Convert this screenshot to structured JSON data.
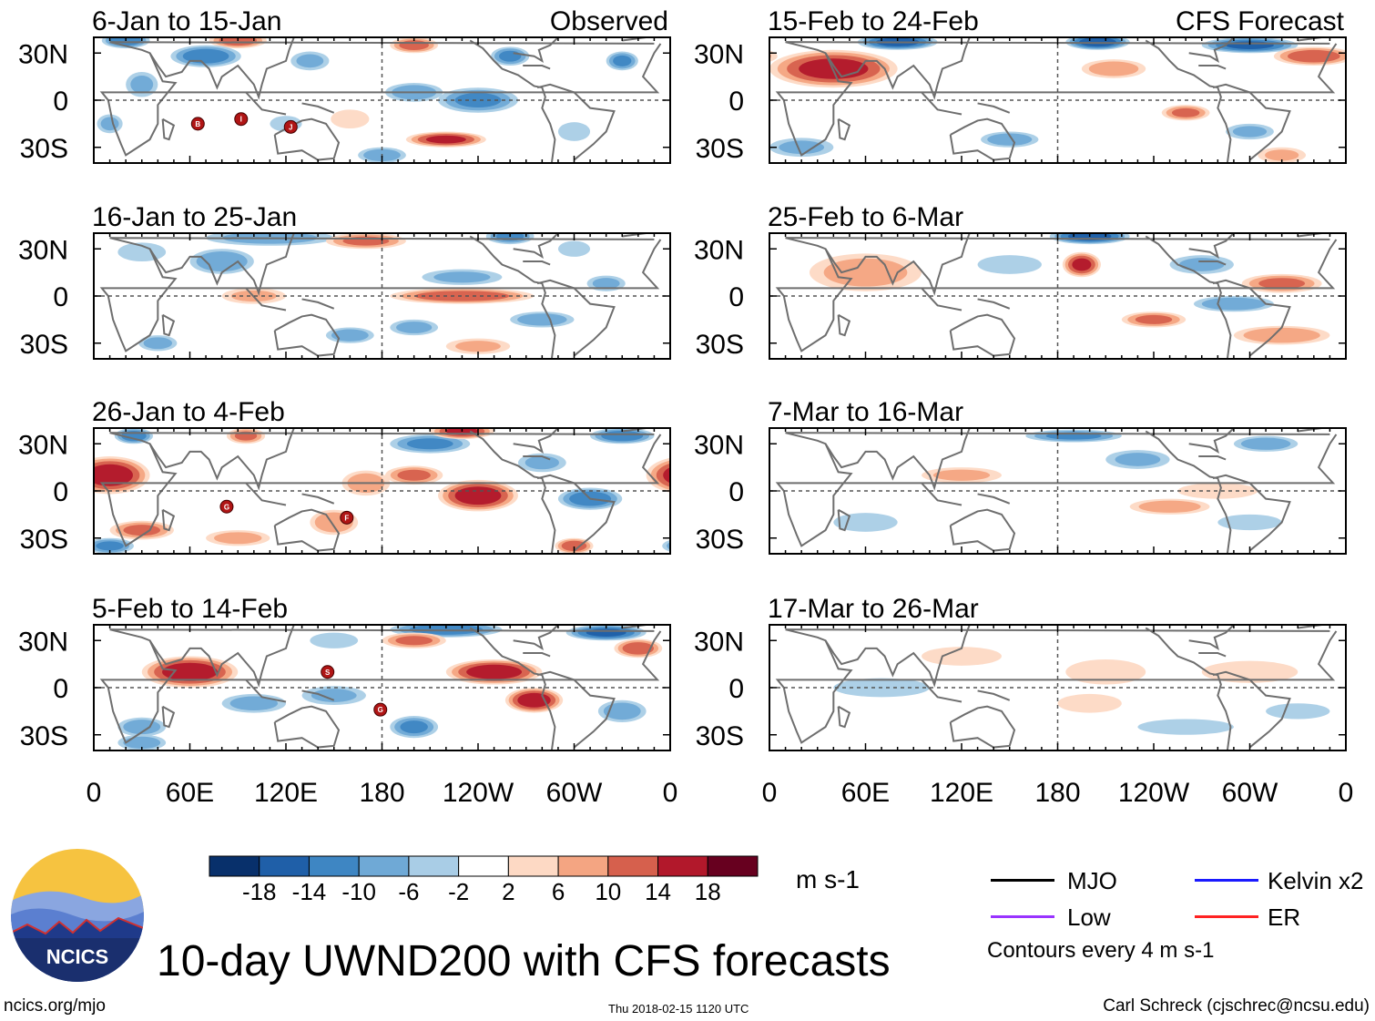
{
  "figure": {
    "title": "10-day UWND200 with CFS forecasts",
    "website": "ncics.org/mjo",
    "timestamp": "Thu 2018-02-15 1120 UTC",
    "author": "Carl Schreck (cjschrec@ncsu.edu)",
    "logo_text": "NCICS",
    "contour_note": "Contours every 4 m s-1"
  },
  "legend": {
    "items": [
      {
        "label": "MJO",
        "color": "#000000"
      },
      {
        "label": "Kelvin x2",
        "color": "#1a1aff"
      },
      {
        "label": "Low",
        "color": "#9933ff"
      },
      {
        "label": "ER",
        "color": "#ff2222"
      }
    ]
  },
  "chart_data": {
    "type": "heatmap",
    "variable": "200-hPa zonal wind anomaly (10-day mean)",
    "units": "m s-1",
    "colorbar": {
      "ticks": [
        -18,
        -14,
        -10,
        -6,
        -2,
        2,
        6,
        10,
        14,
        18
      ],
      "colors": [
        "#08306b",
        "#1f5fa8",
        "#3e86c3",
        "#6fa9d6",
        "#a9cde6",
        "#d6e7f3",
        "#ffffff",
        "#fdd9c4",
        "#f4a582",
        "#d6604d",
        "#b2182b",
        "#67001f"
      ]
    },
    "xaxis": {
      "ticks": [
        "0",
        "60E",
        "120E",
        "180",
        "120W",
        "60W",
        "0"
      ],
      "range_deg_east": [
        0,
        360
      ]
    },
    "yaxis": {
      "ticks": [
        "30N",
        "0",
        "30S"
      ],
      "range_lat": [
        -40,
        40
      ]
    },
    "columns": [
      {
        "label": "Observed",
        "panels": [
          "6-Jan to 15-Jan",
          "16-Jan to 25-Jan",
          "26-Jan to 4-Feb",
          "5-Feb to 14-Feb"
        ]
      },
      {
        "label": "CFS Forecast",
        "panels": [
          "15-Feb to 24-Feb",
          "25-Feb to 6-Mar",
          "7-Mar to 16-Mar",
          "17-Mar to 26-Mar"
        ]
      }
    ],
    "storm_markers": [
      {
        "panel": 0,
        "letter": "B",
        "lon": 65,
        "lat": -15
      },
      {
        "panel": 0,
        "letter": "I",
        "lon": 92,
        "lat": -12
      },
      {
        "panel": 0,
        "letter": "J",
        "lon": 123,
        "lat": -17
      },
      {
        "panel": 2,
        "letter": "G",
        "lon": 83,
        "lat": -10
      },
      {
        "panel": 2,
        "letter": "F",
        "lon": 158,
        "lat": -17
      },
      {
        "panel": 3,
        "letter": "S",
        "lon": 146,
        "lat": 10
      },
      {
        "panel": 3,
        "letter": "G",
        "lon": 179,
        "lat": -14
      }
    ],
    "anomaly_blobs": [
      [
        [
          20,
          38,
          15,
          5,
          -12
        ],
        [
          90,
          38,
          18,
          5,
          12
        ],
        [
          200,
          35,
          15,
          5,
          11
        ],
        [
          70,
          28,
          22,
          7,
          -12
        ],
        [
          135,
          25,
          12,
          6,
          -6
        ],
        [
          260,
          28,
          12,
          6,
          -10
        ],
        [
          330,
          25,
          10,
          6,
          -10
        ],
        [
          30,
          10,
          10,
          8,
          -6
        ],
        [
          200,
          5,
          18,
          6,
          -8
        ],
        [
          240,
          0,
          25,
          8,
          -10
        ],
        [
          220,
          -25,
          25,
          5,
          14
        ],
        [
          180,
          -35,
          15,
          5,
          -8
        ],
        [
          120,
          -15,
          10,
          5,
          -5
        ],
        [
          160,
          -12,
          12,
          6,
          4
        ],
        [
          300,
          -20,
          10,
          6,
          -5
        ],
        [
          10,
          -15,
          8,
          6,
          -6
        ]
      ],
      [
        [
          110,
          37,
          40,
          5,
          -7
        ],
        [
          230,
          12,
          25,
          5,
          -6
        ],
        [
          170,
          35,
          25,
          5,
          10
        ],
        [
          260,
          38,
          15,
          5,
          -10
        ],
        [
          80,
          22,
          20,
          8,
          -9
        ],
        [
          30,
          28,
          15,
          6,
          -5
        ],
        [
          230,
          0,
          45,
          5,
          12
        ],
        [
          280,
          -15,
          20,
          5,
          -8
        ],
        [
          200,
          -20,
          15,
          5,
          -7
        ],
        [
          160,
          -25,
          15,
          5,
          -8
        ],
        [
          40,
          -30,
          12,
          5,
          -7
        ],
        [
          320,
          8,
          12,
          5,
          -6
        ],
        [
          300,
          30,
          10,
          5,
          -5
        ],
        [
          100,
          0,
          20,
          5,
          6
        ],
        [
          240,
          -32,
          20,
          5,
          6
        ]
      ],
      [
        [
          25,
          35,
          12,
          5,
          -12
        ],
        [
          95,
          35,
          12,
          5,
          10
        ],
        [
          210,
          30,
          25,
          6,
          -10
        ],
        [
          230,
          38,
          20,
          5,
          14
        ],
        [
          330,
          35,
          20,
          5,
          -12
        ],
        [
          10,
          10,
          25,
          12,
          16
        ],
        [
          30,
          -25,
          20,
          6,
          10
        ],
        [
          90,
          -30,
          20,
          5,
          7
        ],
        [
          240,
          -3,
          25,
          10,
          16
        ],
        [
          310,
          -5,
          20,
          7,
          -12
        ],
        [
          200,
          10,
          18,
          6,
          10
        ],
        [
          170,
          5,
          15,
          8,
          8
        ],
        [
          150,
          -20,
          15,
          8,
          9
        ],
        [
          300,
          -35,
          12,
          5,
          12
        ],
        [
          10,
          -35,
          15,
          5,
          -10
        ],
        [
          280,
          18,
          15,
          6,
          -6
        ]
      ],
      [
        [
          60,
          10,
          30,
          10,
          16
        ],
        [
          30,
          -25,
          15,
          6,
          -8
        ],
        [
          220,
          37,
          35,
          5,
          -12
        ],
        [
          320,
          35,
          25,
          5,
          -14
        ],
        [
          250,
          10,
          30,
          8,
          16
        ],
        [
          275,
          -8,
          18,
          8,
          16
        ],
        [
          200,
          -25,
          15,
          7,
          -10
        ],
        [
          150,
          -5,
          20,
          6,
          -6
        ],
        [
          100,
          -10,
          20,
          6,
          -7
        ],
        [
          330,
          -15,
          15,
          7,
          -8
        ],
        [
          200,
          30,
          20,
          5,
          10
        ],
        [
          30,
          -35,
          15,
          5,
          -8
        ],
        [
          150,
          30,
          15,
          5,
          -5
        ],
        [
          340,
          25,
          15,
          6,
          12
        ]
      ],
      [
        [
          40,
          20,
          40,
          12,
          15
        ],
        [
          80,
          37,
          25,
          5,
          -15
        ],
        [
          205,
          37,
          20,
          5,
          -16
        ],
        [
          300,
          35,
          30,
          5,
          -14
        ],
        [
          340,
          28,
          25,
          6,
          12
        ],
        [
          215,
          20,
          20,
          6,
          8
        ],
        [
          150,
          -25,
          18,
          5,
          -8
        ],
        [
          260,
          -8,
          15,
          5,
          10
        ],
        [
          300,
          -20,
          15,
          5,
          -6
        ],
        [
          320,
          -35,
          15,
          5,
          6
        ],
        [
          20,
          -30,
          20,
          6,
          -6
        ]
      ],
      [
        [
          200,
          38,
          25,
          5,
          -15
        ],
        [
          195,
          20,
          12,
          8,
          14
        ],
        [
          60,
          15,
          35,
          12,
          7
        ],
        [
          290,
          -5,
          25,
          5,
          -9
        ],
        [
          240,
          -15,
          20,
          5,
          10
        ],
        [
          320,
          -25,
          30,
          6,
          9
        ],
        [
          270,
          20,
          20,
          6,
          -6
        ],
        [
          150,
          20,
          20,
          6,
          -5
        ],
        [
          320,
          8,
          25,
          6,
          10
        ]
      ],
      [
        [
          190,
          35,
          30,
          4,
          -10
        ],
        [
          310,
          30,
          20,
          5,
          -8
        ],
        [
          230,
          20,
          20,
          6,
          -6
        ],
        [
          120,
          10,
          25,
          5,
          6
        ],
        [
          250,
          -10,
          25,
          5,
          8
        ],
        [
          300,
          -20,
          20,
          5,
          -5
        ],
        [
          60,
          -20,
          20,
          6,
          -4
        ],
        [
          280,
          0,
          25,
          5,
          5
        ]
      ],
      [
        [
          210,
          10,
          25,
          8,
          4
        ],
        [
          200,
          -10,
          20,
          6,
          5
        ],
        [
          120,
          20,
          25,
          6,
          3
        ],
        [
          70,
          0,
          30,
          6,
          -4
        ],
        [
          300,
          10,
          30,
          7,
          5
        ],
        [
          260,
          -25,
          30,
          5,
          -4
        ],
        [
          330,
          -15,
          20,
          5,
          -3
        ]
      ]
    ]
  }
}
